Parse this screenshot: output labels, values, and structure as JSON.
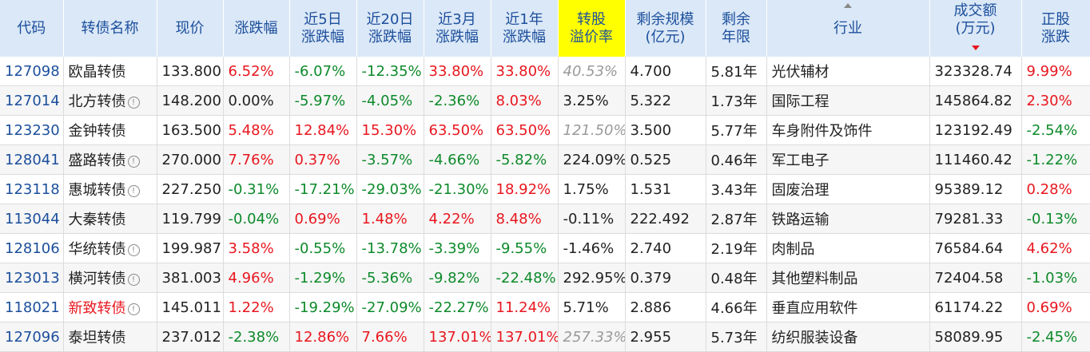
{
  "headers": [
    {
      "lines": [
        "代码"
      ]
    },
    {
      "lines": [
        "转债名称"
      ]
    },
    {
      "lines": [
        "现价"
      ]
    },
    {
      "lines": [
        "涨跌幅"
      ]
    },
    {
      "lines": [
        "近5日",
        "涨跌幅"
      ]
    },
    {
      "lines": [
        "近20日",
        "涨跌幅"
      ]
    },
    {
      "lines": [
        "近3月",
        "涨跌幅"
      ]
    },
    {
      "lines": [
        "近1年",
        "涨跌幅"
      ]
    },
    {
      "lines": [
        "转股",
        "溢价率"
      ]
    },
    {
      "lines": [
        "剩余规模",
        "(亿元)"
      ]
    },
    {
      "lines": [
        "剩余",
        "年限"
      ]
    },
    {
      "lines": [
        "行业"
      ]
    },
    {
      "lines": [
        "成交额",
        "(万元)"
      ]
    },
    {
      "lines": [
        "正股",
        "涨跌"
      ]
    }
  ],
  "rows": [
    {
      "code": "127098",
      "name": "欧晶转债",
      "info": false,
      "price": "133.800",
      "chg": "6.52%",
      "d5": "-6.07%",
      "d20": "-12.35%",
      "m3": "33.80%",
      "y1": "33.80%",
      "premium": "40.53%",
      "scale": "4.700",
      "years": "5.81年",
      "industry": "光伏辅材",
      "volume": "323328.74",
      "stock": "9.99%"
    },
    {
      "code": "127014",
      "name": "北方转债",
      "info": true,
      "price": "148.200",
      "chg": "0.00%",
      "d5": "-5.97%",
      "d20": "-4.05%",
      "m3": "-2.36%",
      "y1": "8.03%",
      "premium": "3.25%",
      "scale": "5.322",
      "years": "1.73年",
      "industry": "国际工程",
      "volume": "145864.82",
      "stock": "2.30%"
    },
    {
      "code": "123230",
      "name": "金钟转债",
      "info": false,
      "price": "163.500",
      "chg": "5.48%",
      "d5": "12.84%",
      "d20": "15.30%",
      "m3": "63.50%",
      "y1": "63.50%",
      "premium": "121.50%",
      "scale": "3.500",
      "years": "5.77年",
      "industry": "车身附件及饰件",
      "volume": "123192.49",
      "stock": "-2.54%"
    },
    {
      "code": "128041",
      "name": "盛路转债",
      "info": true,
      "price": "270.000",
      "chg": "7.76%",
      "d5": "0.37%",
      "d20": "-3.57%",
      "m3": "-4.66%",
      "y1": "-5.82%",
      "premium": "224.09%",
      "scale": "0.525",
      "years": "0.46年",
      "industry": "军工电子",
      "volume": "111460.42",
      "stock": "-1.22%"
    },
    {
      "code": "123118",
      "name": "惠城转债",
      "info": true,
      "price": "227.250",
      "chg": "-0.31%",
      "d5": "-17.21%",
      "d20": "-29.03%",
      "m3": "-21.30%",
      "y1": "18.92%",
      "premium": "1.75%",
      "scale": "1.531",
      "years": "3.43年",
      "industry": "固废治理",
      "volume": "95389.12",
      "stock": "0.28%"
    },
    {
      "code": "113044",
      "name": "大秦转债",
      "info": false,
      "price": "119.799",
      "chg": "-0.04%",
      "d5": "0.69%",
      "d20": "1.48%",
      "m3": "4.22%",
      "y1": "8.48%",
      "premium": "-0.11%",
      "scale": "222.492",
      "years": "2.87年",
      "industry": "铁路运输",
      "volume": "79281.33",
      "stock": "-0.13%"
    },
    {
      "code": "128106",
      "name": "华统转债",
      "info": true,
      "price": "199.987",
      "chg": "3.58%",
      "d5": "-0.55%",
      "d20": "-13.78%",
      "m3": "-3.39%",
      "y1": "-9.55%",
      "premium": "-1.46%",
      "scale": "2.740",
      "years": "2.19年",
      "industry": "肉制品",
      "volume": "76584.64",
      "stock": "4.62%"
    },
    {
      "code": "123013",
      "name": "横河转债",
      "info": true,
      "price": "381.003",
      "chg": "4.96%",
      "d5": "-1.29%",
      "d20": "-5.36%",
      "m3": "-9.82%",
      "y1": "-22.48%",
      "premium": "292.95%",
      "scale": "0.379",
      "years": "0.48年",
      "industry": "其他塑料制品",
      "volume": "72404.58",
      "stock": "-1.03%"
    },
    {
      "code": "118021",
      "name": "新致转债",
      "info": true,
      "price": "145.011",
      "chg": "1.22%",
      "d5": "-19.29%",
      "d20": "-27.09%",
      "m3": "-22.27%",
      "y1": "11.24%",
      "premium": "5.71%",
      "scale": "2.886",
      "years": "4.66年",
      "industry": "垂直应用软件",
      "volume": "61174.22",
      "stock": "0.69%"
    },
    {
      "code": "127096",
      "name": "泰坦转债",
      "info": false,
      "price": "237.012",
      "chg": "-2.38%",
      "d5": "12.86%",
      "d20": "7.66%",
      "m3": "137.01%",
      "y1": "137.01%",
      "premium": "257.33%",
      "scale": "2.955",
      "years": "5.73年",
      "industry": "纺织服装设备",
      "volume": "58089.95",
      "stock": "-2.45%"
    }
  ],
  "info_glyph": "!",
  "colors": {
    "up": "#e8171f",
    "down": "#0d8a2a",
    "header_bg": "#dbe8f7",
    "highlight": "#ffff00"
  }
}
